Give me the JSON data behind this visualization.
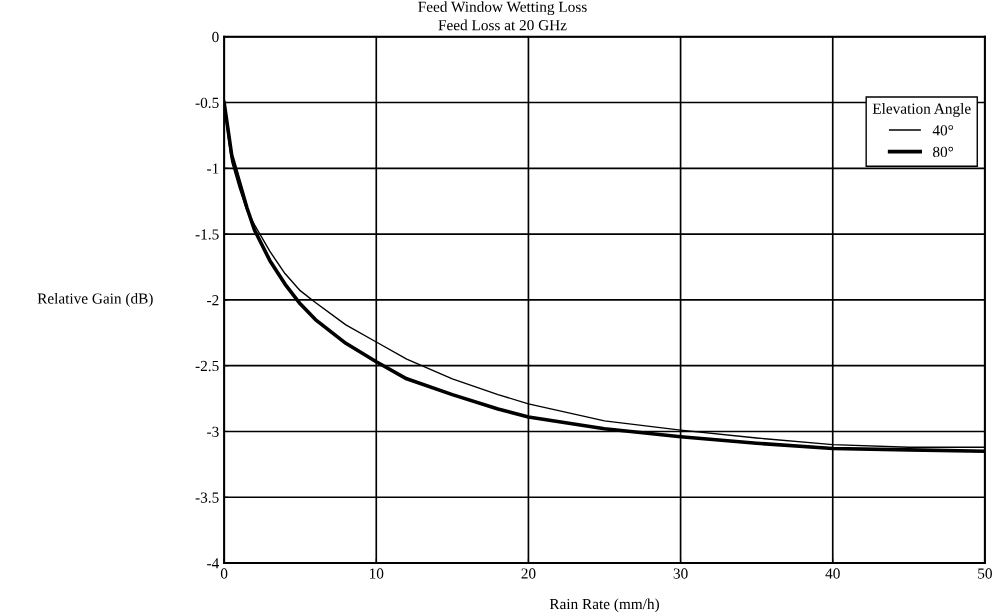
{
  "chart_data": {
    "type": "line",
    "title": "Feed Window Wetting Loss",
    "subtitle": "Feed Loss at 20 GHz",
    "xlabel": "Rain Rate (mm/h)",
    "ylabel": "Relative Gain (dB)",
    "legend_title": "Elevation Angle",
    "x": [
      0,
      0.25,
      0.5,
      1,
      1.5,
      2,
      3,
      4,
      5,
      6,
      8,
      10,
      12,
      15,
      18,
      20,
      25,
      30,
      35,
      40,
      45,
      50
    ],
    "series": [
      {
        "name": "40°",
        "color": "#000000",
        "values": [
          -0.5,
          -0.75,
          -0.95,
          -1.15,
          -1.32,
          -1.43,
          -1.63,
          -1.8,
          -1.93,
          -2.02,
          -2.19,
          -2.32,
          -2.45,
          -2.6,
          -2.72,
          -2.79,
          -2.92,
          -2.99,
          -3.05,
          -3.1,
          -3.12,
          -3.12
        ]
      },
      {
        "name": "80°",
        "color": "#000000",
        "values": [
          -0.5,
          -0.7,
          -0.9,
          -1.1,
          -1.3,
          -1.47,
          -1.7,
          -1.88,
          -2.03,
          -2.15,
          -2.33,
          -2.47,
          -2.6,
          -2.72,
          -2.83,
          -2.89,
          -2.98,
          -3.04,
          -3.09,
          -3.13,
          -3.14,
          -3.15
        ]
      }
    ],
    "xlim": [
      0,
      50
    ],
    "xticks": [
      0,
      10,
      20,
      30,
      40,
      50
    ],
    "ylim": [
      -4,
      0
    ],
    "yticks": [
      0,
      -0.5,
      -1,
      -1.5,
      -2,
      -2.5,
      -3,
      -3.5,
      -4
    ],
    "grid": true,
    "legend": "top right",
    "marker": "none",
    "line_style": "solid"
  }
}
